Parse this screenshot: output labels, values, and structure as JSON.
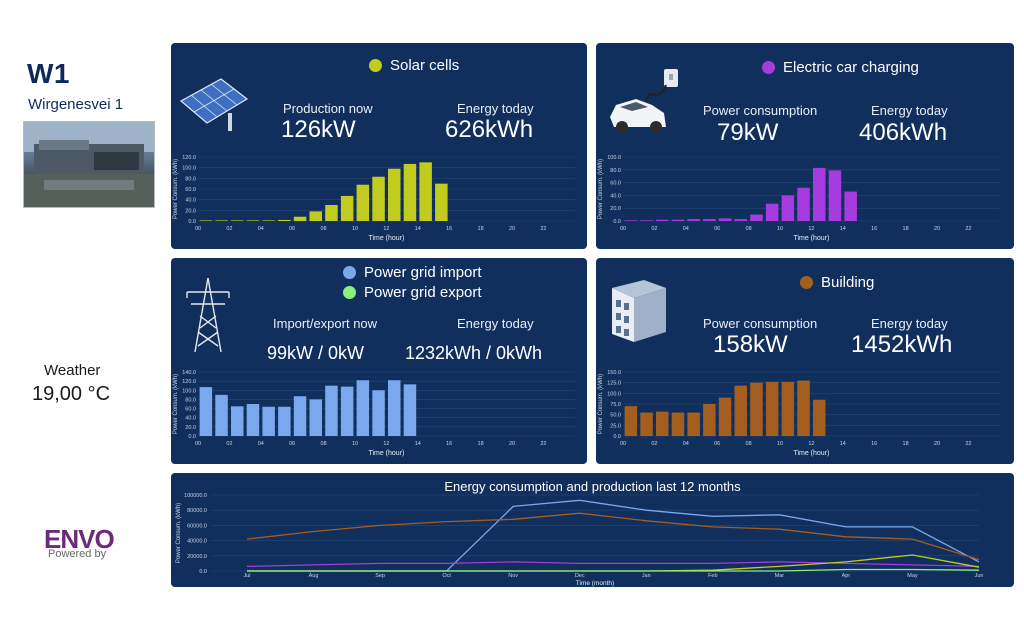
{
  "site": {
    "code": "W1",
    "address": "Wirgenesvei 1"
  },
  "weather": {
    "label": "Weather",
    "value": "19,00 °C"
  },
  "logo": {
    "name": "ENVO",
    "sub": "Powered by"
  },
  "solar": {
    "legend": "Solar cells",
    "production_label": "Production now",
    "production_value": "126kW",
    "energy_label": "Energy today",
    "energy_value": "626kWh",
    "color": "#c1cc1e"
  },
  "car": {
    "legend": "Electric car charging",
    "power_label": "Power consumption",
    "power_value": "79kW",
    "energy_label": "Energy today",
    "energy_value": "406kWh",
    "color": "#a63be0"
  },
  "grid": {
    "legend_import": "Power grid import",
    "legend_export": "Power grid export",
    "import_color": "#7aa7ee",
    "export_color": "#8bf07a",
    "now_label": "Import/export now",
    "now_value": "99kW / 0kW",
    "energy_label": "Energy today",
    "energy_value": "1232kWh / 0kWh"
  },
  "building": {
    "legend": "Building",
    "power_label": "Power consumption",
    "power_value": "158kW",
    "energy_label": "Energy today",
    "energy_value": "1452kWh",
    "color": "#a35e20"
  },
  "trend": {
    "title": "Energy consumption and production last 12 months"
  },
  "chart_data": [
    {
      "id": "solar",
      "type": "bar",
      "ylabel": "Power Consum. (kWh)",
      "xlabel": "Time (hour)",
      "color": "#c1cc1e",
      "ylim": [
        0,
        120
      ],
      "yticks": [
        "0.0",
        "20.0",
        "40.0",
        "60.0",
        "80.0",
        "100.0",
        "120.0"
      ],
      "xticks": [
        "00",
        "02",
        "04",
        "06",
        "08",
        "10",
        "12",
        "14",
        "16",
        "18",
        "20",
        "22"
      ],
      "values": [
        0,
        0,
        0,
        0,
        0,
        2,
        8,
        18,
        30,
        47,
        68,
        83,
        98,
        107,
        110,
        70
      ]
    },
    {
      "id": "car",
      "type": "bar",
      "ylabel": "Power Consum. (kWh)",
      "xlabel": "Time (hour)",
      "color": "#a63be0",
      "ylim": [
        0,
        100
      ],
      "yticks": [
        "0.0",
        "20.0",
        "40.0",
        "60.0",
        "80.0",
        "100.0"
      ],
      "xticks": [
        "00",
        "02",
        "04",
        "06",
        "08",
        "10",
        "12",
        "14",
        "16",
        "18",
        "20",
        "22"
      ],
      "values": [
        1,
        1,
        2,
        2,
        3,
        3,
        4,
        3,
        10,
        27,
        40,
        52,
        83,
        79,
        46
      ]
    },
    {
      "id": "grid",
      "type": "bar",
      "ylabel": "Power Consum. (kWh)",
      "xlabel": "Time (hour)",
      "color": "#7aa7ee",
      "ylim": [
        0,
        140
      ],
      "yticks": [
        "0.0",
        "20.0",
        "40.0",
        "60.0",
        "80.0",
        "100.0",
        "120.0",
        "140.0"
      ],
      "xticks": [
        "00",
        "02",
        "04",
        "06",
        "08",
        "10",
        "12",
        "14",
        "16",
        "18",
        "20",
        "22"
      ],
      "values": [
        107,
        90,
        65,
        70,
        64,
        64,
        87,
        80,
        110,
        108,
        122,
        100,
        122,
        113
      ]
    },
    {
      "id": "building",
      "type": "bar",
      "ylabel": "Power Consum. (kWh)",
      "xlabel": "Time (hour)",
      "color": "#a35e20",
      "ylim": [
        0,
        150
      ],
      "yticks": [
        "0.0",
        "25.0",
        "50.0",
        "75.0",
        "100.0",
        "125.0",
        "150.0"
      ],
      "xticks": [
        "00",
        "02",
        "04",
        "06",
        "08",
        "10",
        "12",
        "14",
        "16",
        "18",
        "20",
        "22"
      ],
      "values": [
        70,
        55,
        57,
        55,
        55,
        75,
        90,
        118,
        125,
        127,
        127,
        130,
        85
      ]
    },
    {
      "id": "trend",
      "type": "line",
      "ylabel": "Power Consum. (kWh)",
      "xlabel": "Time (month)",
      "ylim": [
        0,
        100000
      ],
      "yticks": [
        "0.0",
        "20000.0",
        "40000.0",
        "60000.0",
        "80000.0",
        "100000.0"
      ],
      "categories": [
        "Jul",
        "Aug",
        "Sep",
        "Oct",
        "Nov",
        "Dec",
        "Jan",
        "Feb",
        "Mar",
        "Apr",
        "May",
        "Jun"
      ],
      "series": [
        {
          "name": "Power grid import",
          "color": "#7aa7ee",
          "values": [
            0,
            0,
            0,
            0,
            85000,
            93000,
            80000,
            72000,
            74000,
            58000,
            58000,
            12000
          ]
        },
        {
          "name": "Building",
          "color": "#a35e20",
          "values": [
            42000,
            52000,
            60000,
            65000,
            68000,
            76000,
            66000,
            58000,
            55000,
            45000,
            42000,
            15000
          ]
        },
        {
          "name": "Electric car charging",
          "color": "#a63be0",
          "values": [
            6000,
            8000,
            10000,
            10000,
            12000,
            10000,
            10000,
            10000,
            12000,
            10000,
            8000,
            6000
          ]
        },
        {
          "name": "Solar cells",
          "color": "#c1cc1e",
          "values": [
            0,
            0,
            0,
            0,
            0,
            0,
            0,
            1000,
            6000,
            12000,
            21000,
            5000
          ]
        },
        {
          "name": "Power grid export",
          "color": "#8bf07a",
          "values": [
            0,
            0,
            0,
            0,
            0,
            0,
            0,
            0,
            0,
            2000,
            2000,
            1000
          ]
        }
      ]
    }
  ]
}
